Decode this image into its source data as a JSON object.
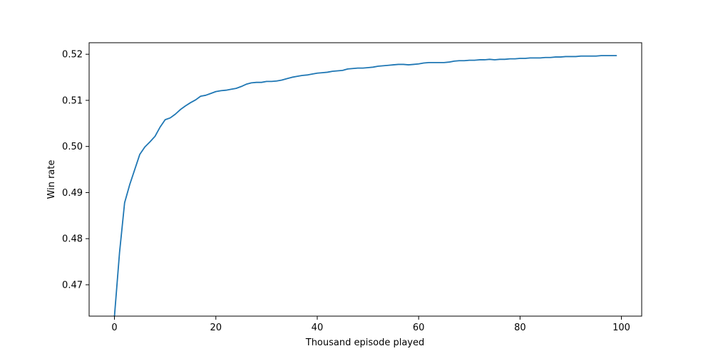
{
  "chart_data": {
    "type": "line",
    "title": "",
    "xlabel": "Thousand episode played",
    "ylabel": "Win rate",
    "xlim": [
      -5,
      104
    ],
    "ylim": [
      0.4632,
      0.5225
    ],
    "x_ticks": [
      0,
      20,
      40,
      60,
      80,
      100
    ],
    "y_ticks": [
      0.47,
      0.48,
      0.49,
      0.5,
      0.51,
      0.52
    ],
    "x_tick_labels": [
      "0",
      "20",
      "40",
      "60",
      "80",
      "100"
    ],
    "y_tick_labels": [
      "0.47",
      "0.48",
      "0.49",
      "0.50",
      "0.51",
      "0.52"
    ],
    "grid": false,
    "legend": "none",
    "colors": {
      "line": "#1f77b4",
      "axes": "#000000",
      "background": "#ffffff"
    },
    "series": [
      {
        "color": "#1f77b4",
        "x": [
          0,
          1,
          2,
          3,
          4,
          5,
          6,
          7,
          8,
          9,
          10,
          11,
          12,
          13,
          14,
          15,
          16,
          17,
          18,
          19,
          20,
          21,
          22,
          23,
          24,
          25,
          26,
          27,
          28,
          29,
          30,
          31,
          32,
          33,
          34,
          35,
          36,
          37,
          38,
          39,
          40,
          41,
          42,
          43,
          44,
          45,
          46,
          47,
          48,
          49,
          50,
          51,
          52,
          53,
          54,
          55,
          56,
          57,
          58,
          59,
          60,
          61,
          62,
          63,
          64,
          65,
          66,
          67,
          68,
          69,
          70,
          71,
          72,
          73,
          74,
          75,
          76,
          77,
          78,
          79,
          80,
          81,
          82,
          83,
          84,
          85,
          86,
          87,
          88,
          89,
          90,
          91,
          92,
          93,
          94,
          95,
          96,
          97,
          98,
          99
        ],
        "values": [
          0.4632,
          0.477,
          0.4878,
          0.4917,
          0.495,
          0.4983,
          0.4999,
          0.501,
          0.5022,
          0.5042,
          0.5058,
          0.5062,
          0.507,
          0.508,
          0.5088,
          0.5095,
          0.5101,
          0.5109,
          0.5111,
          0.5115,
          0.5119,
          0.5121,
          0.5122,
          0.5124,
          0.5126,
          0.513,
          0.5135,
          0.5138,
          0.5139,
          0.5139,
          0.5141,
          0.5141,
          0.5142,
          0.5144,
          0.5147,
          0.515,
          0.5152,
          0.5154,
          0.5155,
          0.5157,
          0.5159,
          0.516,
          0.5161,
          0.5163,
          0.5164,
          0.5165,
          0.5168,
          0.5169,
          0.517,
          0.517,
          0.5171,
          0.5172,
          0.5174,
          0.5175,
          0.5176,
          0.5177,
          0.5178,
          0.5178,
          0.5177,
          0.5178,
          0.5179,
          0.5181,
          0.5182,
          0.5182,
          0.5182,
          0.5182,
          0.5183,
          0.5185,
          0.5186,
          0.5186,
          0.5187,
          0.5187,
          0.5188,
          0.5188,
          0.5189,
          0.5188,
          0.5189,
          0.5189,
          0.519,
          0.519,
          0.5191,
          0.5191,
          0.5192,
          0.5192,
          0.5192,
          0.5193,
          0.5193,
          0.5194,
          0.5194,
          0.5195,
          0.5195,
          0.5195,
          0.5196,
          0.5196,
          0.5196,
          0.5196,
          0.5197,
          0.5197,
          0.5197,
          0.5197
        ]
      }
    ]
  }
}
